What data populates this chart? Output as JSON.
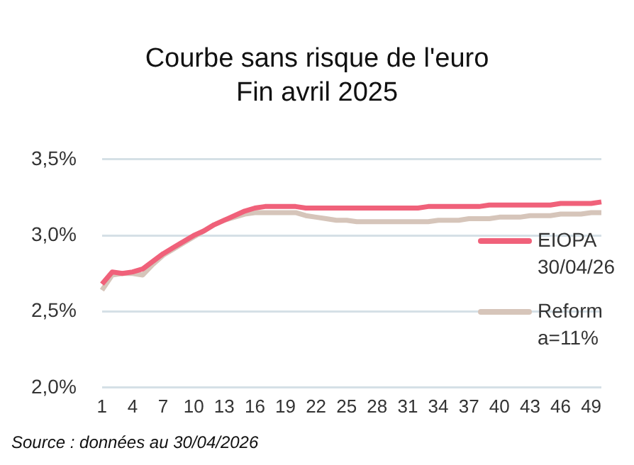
{
  "chart_data": {
    "type": "line",
    "title": "Courbe sans risque de l'euro",
    "subtitle": "Fin avril 2025",
    "categories": [
      "1",
      null,
      null,
      "4",
      null,
      null,
      "7",
      null,
      null,
      "10",
      null,
      null,
      "13",
      null,
      null,
      "16",
      null,
      null,
      "19",
      null,
      null,
      "22",
      null,
      null,
      "25",
      null,
      null,
      "28",
      null,
      null,
      "31",
      null,
      null,
      "34",
      null,
      null,
      "37",
      null,
      null,
      "40",
      null,
      null,
      "43",
      null,
      null,
      "46",
      null,
      null,
      "49",
      null
    ],
    "series": [
      {
        "name": "EIOPA 30/04/26",
        "color": "#f0617a",
        "values": [
          2.68,
          2.76,
          2.75,
          2.76,
          2.78,
          2.83,
          2.88,
          2.92,
          2.96,
          3.0,
          3.03,
          3.07,
          3.1,
          3.13,
          3.16,
          3.18,
          3.19,
          3.19,
          3.19,
          3.19,
          3.18,
          3.18,
          3.18,
          3.18,
          3.18,
          3.18,
          3.18,
          3.18,
          3.18,
          3.18,
          3.18,
          3.18,
          3.19,
          3.19,
          3.19,
          3.19,
          3.19,
          3.19,
          3.2,
          3.2,
          3.2,
          3.2,
          3.2,
          3.2,
          3.2,
          3.21,
          3.21,
          3.21,
          3.21,
          3.22
        ]
      },
      {
        "name": "Reform a=11%",
        "color": "#d6c5ba",
        "values": [
          2.64,
          2.74,
          2.75,
          2.75,
          2.74,
          2.81,
          2.87,
          2.91,
          2.95,
          2.99,
          3.03,
          3.07,
          3.1,
          3.12,
          3.14,
          3.15,
          3.15,
          3.15,
          3.15,
          3.15,
          3.13,
          3.12,
          3.11,
          3.1,
          3.1,
          3.09,
          3.09,
          3.09,
          3.09,
          3.09,
          3.09,
          3.09,
          3.09,
          3.1,
          3.1,
          3.1,
          3.11,
          3.11,
          3.11,
          3.12,
          3.12,
          3.12,
          3.13,
          3.13,
          3.13,
          3.14,
          3.14,
          3.14,
          3.15,
          3.15
        ]
      }
    ],
    "ylim": [
      2.0,
      3.5
    ],
    "yticks": [
      {
        "value": 2.0,
        "label": "2,0%"
      },
      {
        "value": 2.5,
        "label": "2,5%"
      },
      {
        "value": 3.0,
        "label": "3,0%"
      },
      {
        "value": 3.5,
        "label": "3,5%"
      }
    ],
    "grid": "y",
    "legend": "right",
    "marker": "none",
    "line_style": "solid",
    "annotations": [
      "Source : données au 30/04/2026"
    ]
  }
}
